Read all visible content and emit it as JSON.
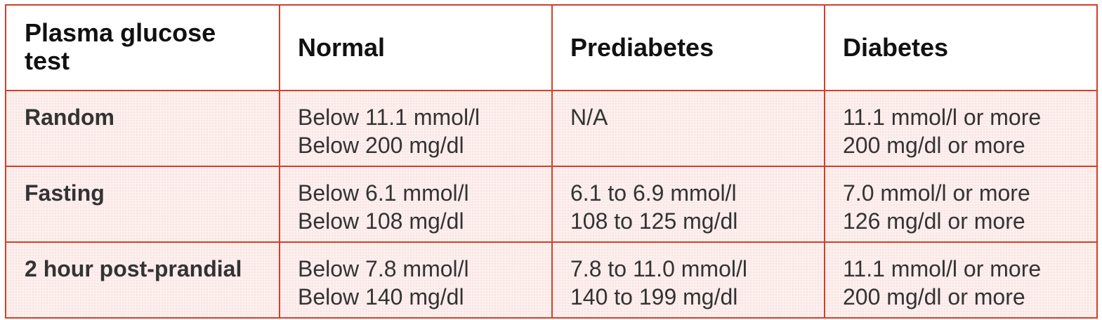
{
  "table": {
    "headers": [
      "Plasma glucose test",
      "Normal",
      "Prediabetes",
      "Diabetes"
    ],
    "rows": [
      {
        "test": "Random",
        "normal": [
          "Below 11.1 mmol/l",
          "Below 200 mg/dl"
        ],
        "prediabetes": [
          "N/A"
        ],
        "diabetes": [
          "11.1 mmol/l or more",
          "200 mg/dl or more"
        ]
      },
      {
        "test": "Fasting",
        "normal": [
          "Below 6.1 mmol/l",
          "Below 108 mg/dl"
        ],
        "prediabetes": [
          "6.1 to 6.9 mmol/l",
          "108 to 125 mg/dl"
        ],
        "diabetes": [
          "7.0 mmol/l or more",
          "126 mg/dl or more"
        ]
      },
      {
        "test": "2 hour post-prandial",
        "normal": [
          "Below 7.8 mmol/l",
          "Below 140 mg/dl"
        ],
        "prediabetes": [
          "7.8 to 11.0 mmol/l",
          "140 to 199 mg/dl"
        ],
        "diabetes": [
          "11.1 mmol/l or more",
          "200 mg/dl or more"
        ]
      }
    ]
  },
  "colors": {
    "border": "#d0402a",
    "body_cell_background": "#fcefed",
    "header_background": "#ffffff",
    "text": "#333333"
  }
}
